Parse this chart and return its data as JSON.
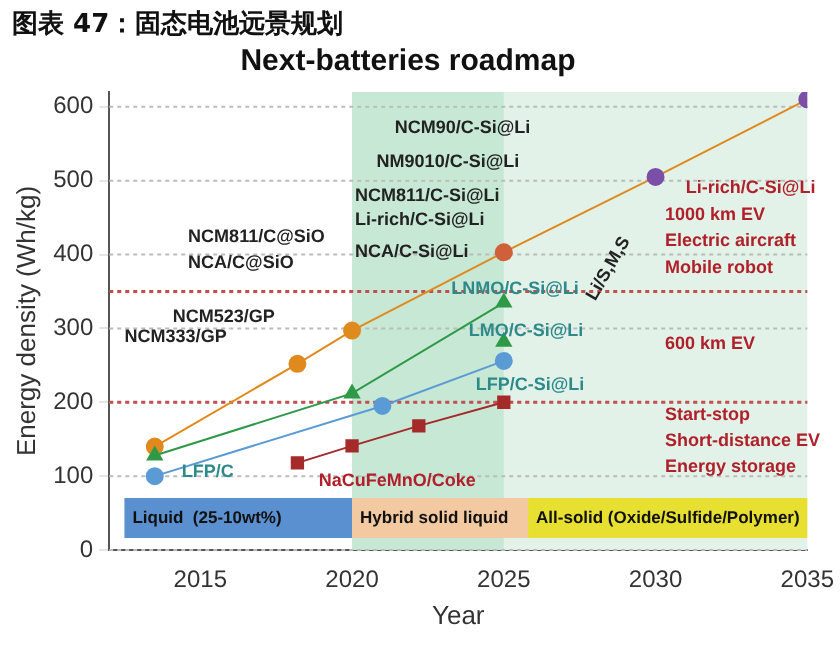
{
  "chart_data": {
    "type": "line",
    "title": "图表 47：固态电池远景规划",
    "subtitle": "Next-batteries roadmap",
    "xlabel": "Year",
    "ylabel": "Energy density (Wh/kg)",
    "xlim": [
      2012,
      2035
    ],
    "xticks": [
      2015,
      2020,
      2025,
      2030,
      2035
    ],
    "ylim": [
      0,
      620
    ],
    "yticks": [
      0,
      100,
      200,
      300,
      400,
      500,
      600
    ],
    "grid": "y",
    "legend": false,
    "series": [
      {
        "color": "#e08a1e",
        "marker": "circle",
        "x": [
          2013.5,
          2018.2,
          2020,
          2025,
          2030,
          2035
        ],
        "values": [
          140,
          252,
          297,
          403,
          505,
          610
        ],
        "colors": [
          "#e08a1e",
          "#e08a1e",
          "#e08a1e",
          "#d0603a",
          "#7b4fa8",
          "#7b4fa8"
        ]
      },
      {
        "color": "#2e9a48",
        "marker": "triangle",
        "x": [
          2013.5,
          2020,
          2025
        ],
        "values": [
          128,
          212,
          335
        ]
      },
      {
        "color": "#2e9a48",
        "marker": "triangle",
        "x": [
          2025
        ],
        "values": [
          282
        ]
      },
      {
        "color": "#5b9bd5",
        "marker": "circle",
        "x": [
          2013.5,
          2021,
          2025
        ],
        "values": [
          100,
          195,
          256
        ]
      },
      {
        "color": "#a52a2a",
        "marker": "square",
        "x": [
          2018.2,
          2020,
          2022.2,
          2025
        ],
        "values": [
          118,
          141,
          168,
          200
        ]
      }
    ],
    "ref_lines": [
      {
        "axis": "y",
        "value": 350,
        "color": "#c0504d",
        "line_style": "dotted"
      },
      {
        "axis": "y",
        "value": 200,
        "color": "#c0504d",
        "line_style": "dotted"
      }
    ],
    "bands": [
      {
        "axis": "x",
        "from": 2020,
        "to": 2035,
        "color": "#e3f2e8"
      },
      {
        "axis": "x",
        "from": 2020,
        "to": 2025,
        "color": "#c8e8d6"
      },
      {
        "axis": "x",
        "from": 2012.5,
        "to": 2020,
        "label": "Liquid  (25-10wt%)",
        "color": "#5a8fd0"
      },
      {
        "axis": "x",
        "from": 2020,
        "to": 2025.8,
        "label": "Hybrid solid liquid",
        "color": "#f2c9a0"
      },
      {
        "axis": "x",
        "from": 2025.8,
        "to": 2035,
        "label": "All-solid (Oxide/Sulfide/Polymer)",
        "color": "#e8e030"
      }
    ],
    "annotations": [
      "NCM333/GP",
      "NCM523/GP",
      "NCM811/C@SiO",
      "NCA/C@SiO",
      "NCM90/C-Si@Li",
      "NM9010/C-Si@Li",
      "NCM811/C-Si@Li",
      "Li-rich/C-Si@Li",
      "NCA/C-Si@Li",
      "LNMO/C-Si@Li",
      "LMO/C-Si@Li",
      "LFP/C-Si@Li",
      "LFP/C",
      "NaCuFeMnO/Coke",
      "Li-rich/C-Si@Li",
      "1000 km EV",
      "Electric aircraft",
      "Mobile robot",
      "600 km EV",
      "Start-stop",
      "Short-distance EV",
      "Energy storage",
      "Li/S,M,S"
    ]
  }
}
